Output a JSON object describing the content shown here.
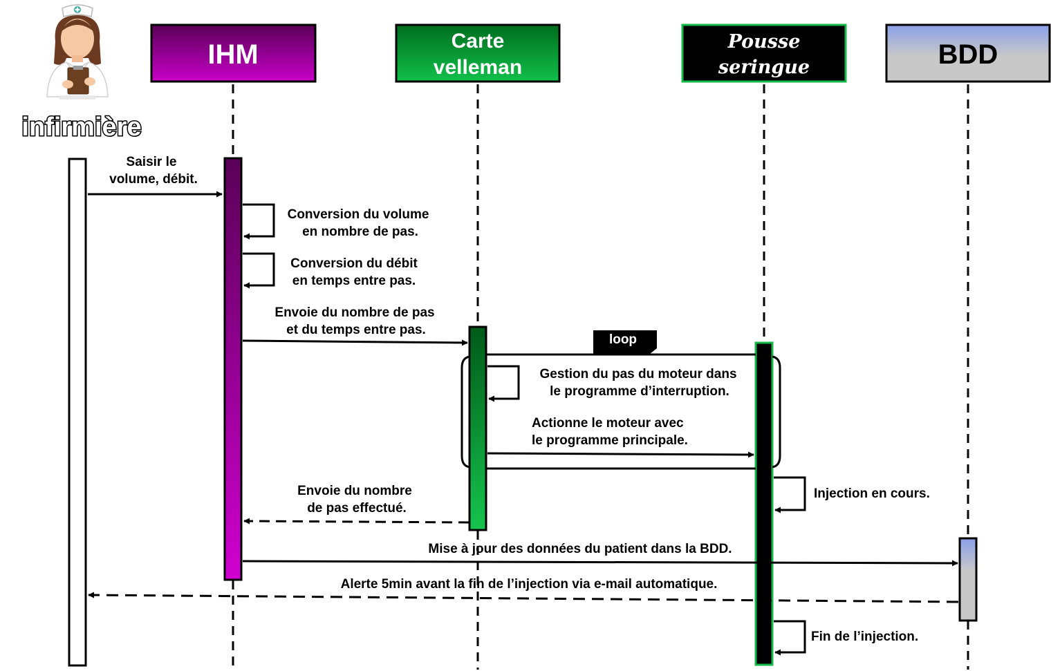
{
  "actor": {
    "name": "infirmière",
    "icon": "nurse-icon"
  },
  "participants": {
    "ihm": {
      "label": "IHM"
    },
    "carte": {
      "label_line1": "Carte",
      "label_line2": "velleman"
    },
    "pousse": {
      "label_line1": "Pousse",
      "label_line2": "seringue"
    },
    "bdd": {
      "label": "BDD"
    }
  },
  "loop": {
    "label": "loop"
  },
  "messages": {
    "saisir": {
      "line1": "Saisir le",
      "line2": "volume, débit."
    },
    "conv_volume": {
      "line1": "Conversion du volume",
      "line2": "en nombre de pas."
    },
    "conv_debit": {
      "line1": "Conversion du débit",
      "line2": "en temps entre pas."
    },
    "envoie_nombre": {
      "line1": "Envoie du nombre de  pas",
      "line2": "et du temps entre pas."
    },
    "gestion_pas": {
      "line1": "Gestion du pas du moteur dans",
      "line2": "le programme d’interruption."
    },
    "actionne": {
      "line1": "Actionne le moteur avec",
      "line2": "le programme principale."
    },
    "injection_cours": {
      "line1": "Injection en cours."
    },
    "envoie_effectue": {
      "line1": "Envoie du nombre",
      "line2": "de  pas effectué."
    },
    "mise_a_jour": {
      "line1": "Mise à jour des données du patient dans la BDD."
    },
    "alerte": {
      "line1": "Alerte 5min avant la fin de l’injection via e-mail automatique."
    },
    "fin_injection": {
      "line1": "Fin de l’injection."
    }
  },
  "colors": {
    "ihm_dark": "#5a0057",
    "ihm_light": "#c800c8",
    "carte_dark": "#006d1f",
    "carte_light": "#11c04a",
    "pousse_fill": "#000000",
    "pousse_border": "#16b84a",
    "bdd_top": "#8aa0e8",
    "bdd_bottom": "#c8c8c8"
  }
}
